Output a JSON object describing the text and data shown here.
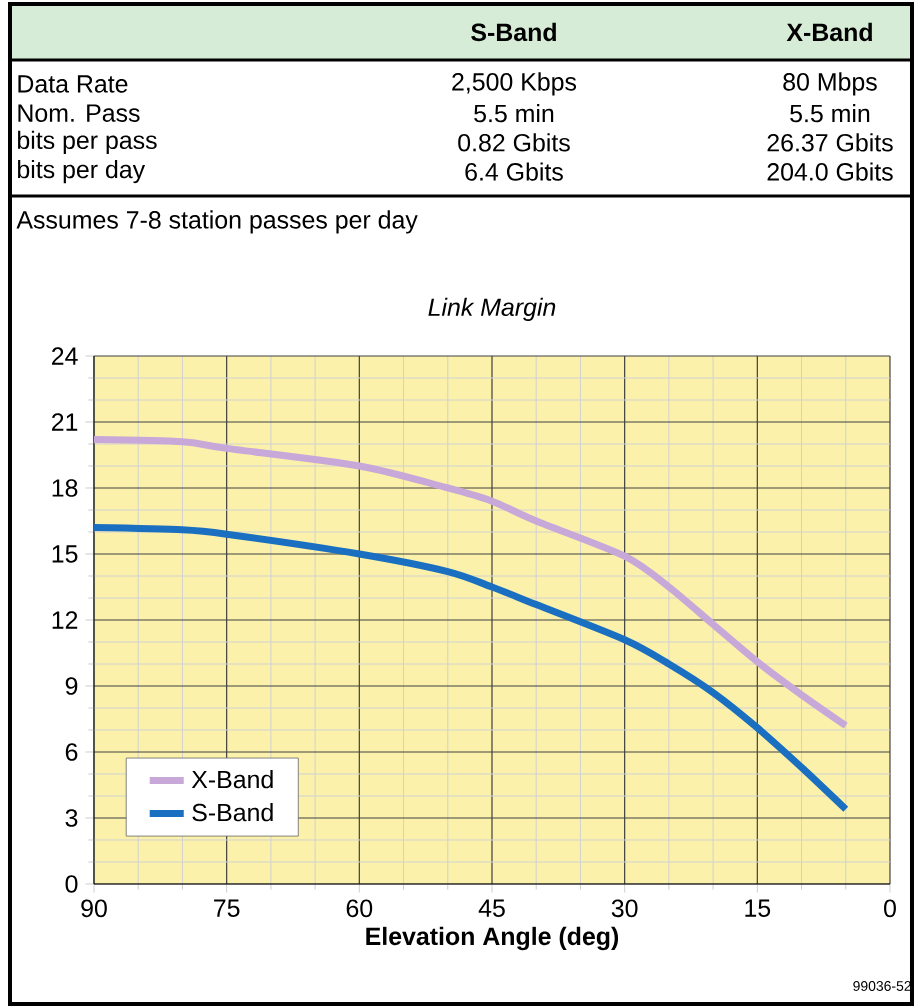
{
  "chart_data": [
    {
      "type": "other",
      "categories": [
        "S-Band",
        "X-Band"
      ],
      "y_categories": [
        "Data Rate",
        "Nom. Pass",
        "bits per pass",
        "bits per day"
      ],
      "cell_labels": [
        [
          "2,500 Kbps",
          "80 Mbps"
        ],
        [
          "5.5 min",
          "5.5 min"
        ],
        [
          "0.82 Gbits",
          "26.37 Gbits"
        ],
        [
          "6.4 Gbits",
          "204.0 Gbits"
        ]
      ],
      "annotations": [
        "Assumes 7-8 station passes per day"
      ]
    },
    {
      "type": "line",
      "title": "Link Margin",
      "xlabel": "Elevation Angle (deg)",
      "annotations": [
        "99036-52"
      ],
      "x": [
        90,
        80,
        75,
        60,
        50,
        45,
        40,
        30,
        25,
        20,
        15,
        10,
        5
      ],
      "series": [
        {
          "name": "X-Band",
          "color": "#c8a8d8",
          "values": [
            20.2,
            20.1,
            19.8,
            19.0,
            18.0,
            17.4,
            16.5,
            14.9,
            13.5,
            11.8,
            10.1,
            8.6,
            7.2
          ]
        },
        {
          "name": "S-Band",
          "color": "#1a6fc0",
          "values": [
            16.2,
            16.1,
            15.9,
            15.0,
            14.2,
            13.5,
            12.7,
            11.1,
            10.0,
            8.7,
            7.1,
            5.3,
            3.4
          ]
        }
      ],
      "xlim": [
        90,
        0
      ],
      "ylim": [
        0,
        24
      ],
      "xticks": [
        90,
        75,
        60,
        45,
        30,
        15,
        0
      ],
      "yticks": [
        0,
        3,
        6,
        9,
        12,
        15,
        18,
        21,
        24
      ],
      "grid": true,
      "legend": "bottom left"
    }
  ]
}
